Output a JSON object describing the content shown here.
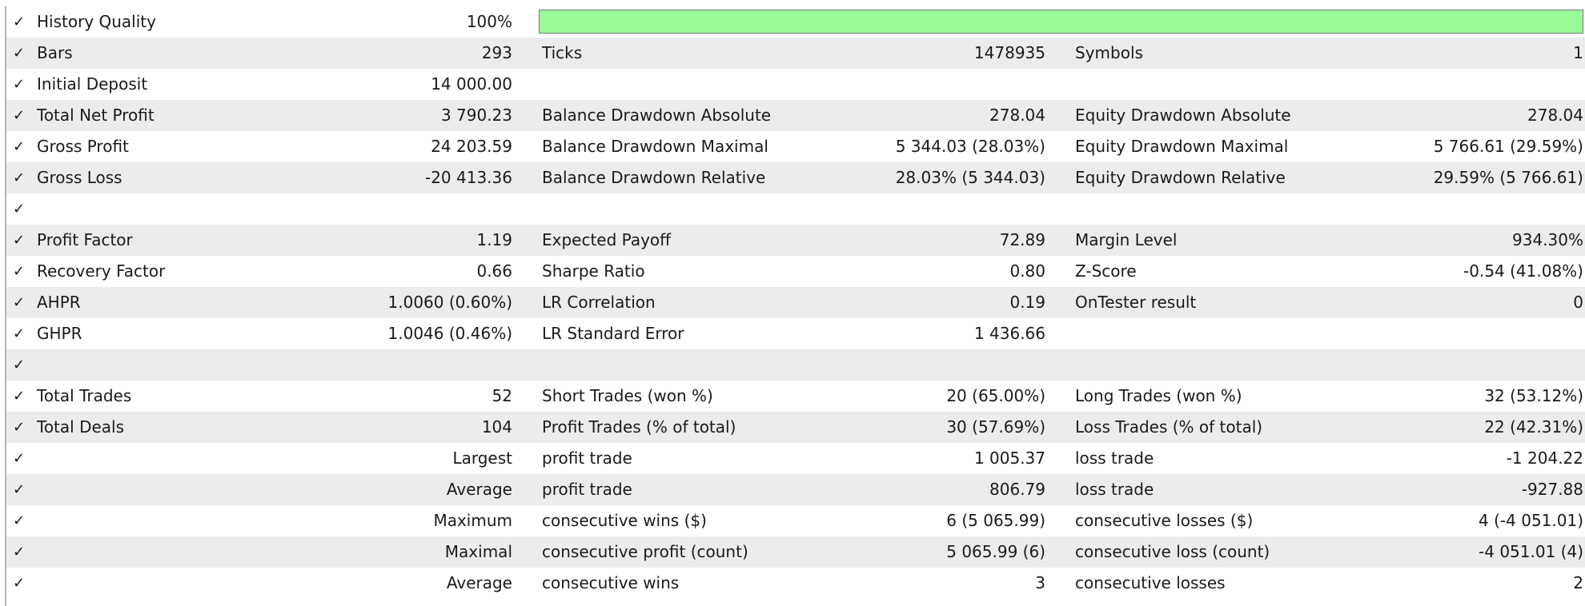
{
  "check_glyph": "✓",
  "quality_bar": {
    "level": 1.0,
    "color": "#98fb98"
  },
  "rows": [
    {
      "l1": "History Quality",
      "v1": "100%",
      "l2": "",
      "v2": "",
      "l3": "",
      "v3": ""
    },
    {
      "l1": "Bars",
      "v1": "293",
      "l2": "Ticks",
      "v2": "1478935",
      "l3": "Symbols",
      "v3": "1"
    },
    {
      "l1": "Initial Deposit",
      "v1": "14 000.00",
      "l2": "",
      "v2": "",
      "l3": "",
      "v3": ""
    },
    {
      "l1": "Total Net Profit",
      "v1": "3 790.23",
      "l2": "Balance Drawdown Absolute",
      "v2": "278.04",
      "l3": "Equity Drawdown Absolute",
      "v3": "278.04"
    },
    {
      "l1": "Gross Profit",
      "v1": "24 203.59",
      "l2": "Balance Drawdown Maximal",
      "v2": "5 344.03 (28.03%)",
      "l3": "Equity Drawdown Maximal",
      "v3": "5 766.61 (29.59%)"
    },
    {
      "l1": "Gross Loss",
      "v1": "-20 413.36",
      "l2": "Balance Drawdown Relative",
      "v2": "28.03% (5 344.03)",
      "l3": "Equity Drawdown Relative",
      "v3": "29.59% (5 766.61)"
    },
    {
      "l1": "",
      "v1": "",
      "l2": "",
      "v2": "",
      "l3": "",
      "v3": ""
    },
    {
      "l1": "Profit Factor",
      "v1": "1.19",
      "l2": "Expected Payoff",
      "v2": "72.89",
      "l3": "Margin Level",
      "v3": "934.30%"
    },
    {
      "l1": "Recovery Factor",
      "v1": "0.66",
      "l2": "Sharpe Ratio",
      "v2": "0.80",
      "l3": "Z-Score",
      "v3": "-0.54 (41.08%)"
    },
    {
      "l1": "AHPR",
      "v1": "1.0060 (0.60%)",
      "l2": "LR Correlation",
      "v2": "0.19",
      "l3": "OnTester result",
      "v3": "0"
    },
    {
      "l1": "GHPR",
      "v1": "1.0046 (0.46%)",
      "l2": "LR Standard Error",
      "v2": "1 436.66",
      "l3": "",
      "v3": ""
    },
    {
      "l1": "",
      "v1": "",
      "l2": "",
      "v2": "",
      "l3": "",
      "v3": ""
    },
    {
      "l1": "Total Trades",
      "v1": "52",
      "l2": "Short Trades (won %)",
      "v2": "20 (65.00%)",
      "l3": "Long Trades (won %)",
      "v3": "32 (53.12%)"
    },
    {
      "l1": "Total Deals",
      "v1": "104",
      "l2": "Profit Trades (% of total)",
      "v2": "30 (57.69%)",
      "l3": "Loss Trades (% of total)",
      "v3": "22 (42.31%)"
    },
    {
      "l1": "",
      "v1": "Largest",
      "l2": "profit trade",
      "v2": "1 005.37",
      "l3": "loss trade",
      "v3": "-1 204.22"
    },
    {
      "l1": "",
      "v1": "Average",
      "l2": "profit trade",
      "v2": "806.79",
      "l3": "loss trade",
      "v3": "-927.88"
    },
    {
      "l1": "",
      "v1": "Maximum",
      "l2": "consecutive wins ($)",
      "v2": "6 (5 065.99)",
      "l3": "consecutive losses ($)",
      "v3": "4 (-4 051.01)"
    },
    {
      "l1": "",
      "v1": "Maximal",
      "l2": "consecutive profit (count)",
      "v2": "5 065.99 (6)",
      "l3": "consecutive loss (count)",
      "v3": "-4 051.01 (4)"
    },
    {
      "l1": "",
      "v1": "Average",
      "l2": "consecutive wins",
      "v2": "3",
      "l3": "consecutive losses",
      "v3": "2"
    }
  ]
}
